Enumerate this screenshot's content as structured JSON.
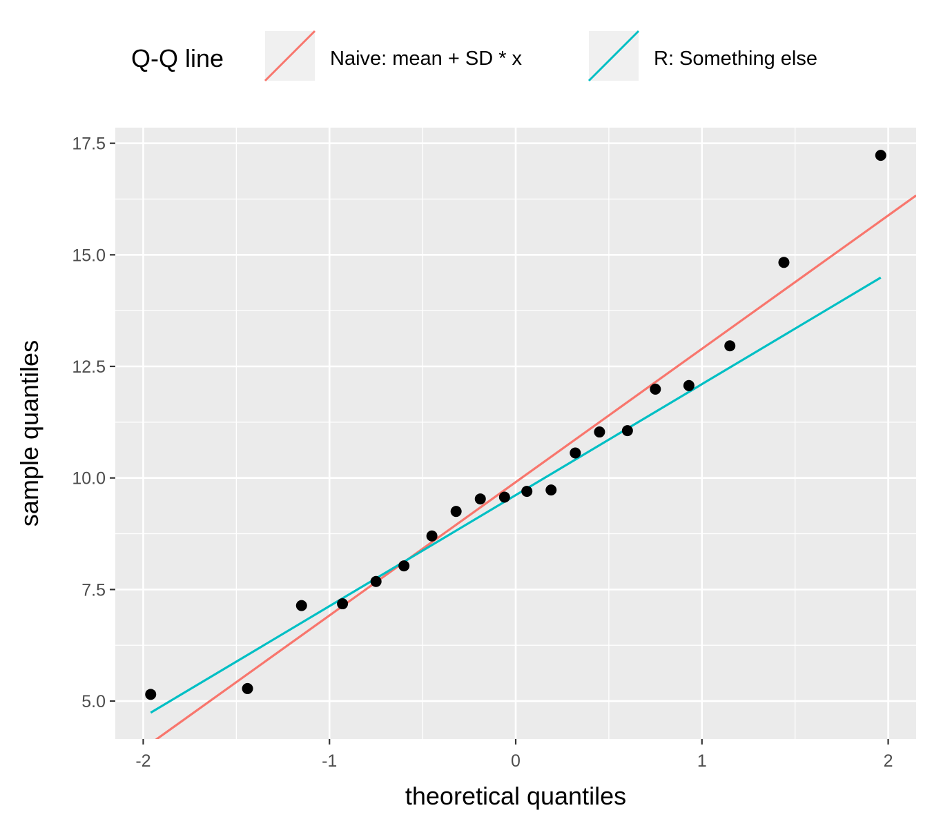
{
  "chart_data": {
    "type": "scatter",
    "xlabel": "theoretical quantiles",
    "ylabel": "sample quantiles",
    "xlim": [
      -2.15,
      2.15
    ],
    "ylim": [
      4.15,
      17.85
    ],
    "x_ticks": [
      -2,
      -1,
      0,
      1,
      2
    ],
    "x_tick_labels": [
      "-2",
      "-1",
      "0",
      "1",
      "2"
    ],
    "y_ticks": [
      5.0,
      7.5,
      10.0,
      12.5,
      15.0,
      17.5
    ],
    "y_tick_labels": [
      "5.0",
      "7.5",
      "10.0",
      "12.5",
      "15.0",
      "17.5"
    ],
    "grid": true,
    "legend": {
      "title": "Q-Q line",
      "position": "top",
      "entries": [
        {
          "label": "Naive: mean + SD * x",
          "color": "#F8766D"
        },
        {
          "label": "R: Something else",
          "color": "#00BFC4"
        }
      ]
    },
    "points": {
      "color": "#000000",
      "x": [
        -1.96,
        -1.44,
        -1.15,
        -0.93,
        -0.75,
        -0.6,
        -0.45,
        -0.32,
        -0.19,
        -0.06,
        0.06,
        0.19,
        0.32,
        0.45,
        0.6,
        0.75,
        0.93,
        1.15,
        1.44,
        1.96
      ],
      "y": [
        5.15,
        5.28,
        7.14,
        7.18,
        7.68,
        8.03,
        8.7,
        9.25,
        9.53,
        9.57,
        9.7,
        9.73,
        10.56,
        11.03,
        11.06,
        11.99,
        12.07,
        12.96,
        14.83,
        17.23
      ]
    },
    "lines": [
      {
        "name": "Naive: mean + SD * x",
        "color": "#F8766D",
        "x": [
          -1.96,
          2.15
        ],
        "y": [
          4.05,
          16.33
        ]
      },
      {
        "name": "R: Something else",
        "color": "#00BFC4",
        "x": [
          -1.96,
          1.96
        ],
        "y": [
          4.74,
          14.49
        ]
      }
    ]
  }
}
